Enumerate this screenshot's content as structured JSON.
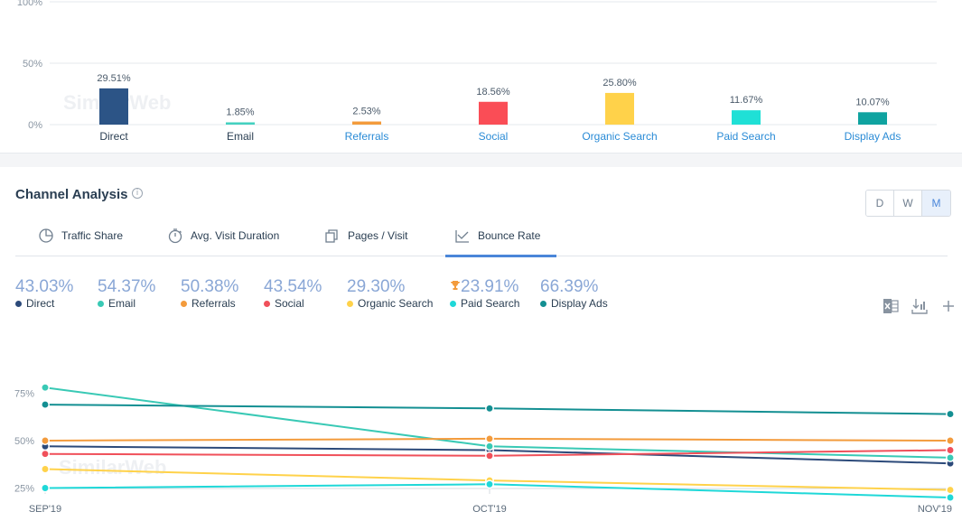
{
  "watermark": "SimilarWeb",
  "channels_overview": {
    "chart_data": {
      "type": "bar",
      "categories": [
        "Direct",
        "Email",
        "Referrals",
        "Social",
        "Organic Search",
        "Paid Search",
        "Display Ads"
      ],
      "values": [
        29.51,
        1.85,
        2.53,
        18.56,
        25.8,
        11.67,
        10.07
      ],
      "value_labels": [
        "29.51%",
        "1.85%",
        "2.53%",
        "18.56%",
        "25.80%",
        "11.67%",
        "10.07%"
      ],
      "colors": [
        "#2c5486",
        "#44d1c0",
        "#f39b3c",
        "#fa4d56",
        "#ffd24a",
        "#1fe0d6",
        "#0fa3a0"
      ],
      "label_colors": [
        "#2a3e52",
        "#2a3e52",
        "#2a8bd6",
        "#2a8bd6",
        "#2a8bd6",
        "#2a8bd6",
        "#2a8bd6"
      ],
      "y_ticks": [
        "0%",
        "50%",
        "100%"
      ],
      "ylim": [
        0,
        100
      ]
    }
  },
  "channel_analysis": {
    "title": "Channel Analysis",
    "info_icon": "i",
    "granularity": [
      "D",
      "W",
      "M"
    ],
    "granularity_active": "M",
    "tabs": [
      {
        "label": "Traffic Share",
        "icon": "pie-icon"
      },
      {
        "label": "Avg. Visit Duration",
        "icon": "stopwatch-icon"
      },
      {
        "label": "Pages / Visit",
        "icon": "pages-icon"
      },
      {
        "label": "Bounce Rate",
        "icon": "bounce-icon"
      }
    ],
    "active_tab": "Bounce Rate",
    "metrics": [
      {
        "value": "43.03%",
        "label": "Direct",
        "color": "#2c4a7a",
        "trophy": false
      },
      {
        "value": "54.37%",
        "label": "Email",
        "color": "#39c9b5",
        "trophy": false
      },
      {
        "value": "50.38%",
        "label": "Referrals",
        "color": "#f39b3c",
        "trophy": false
      },
      {
        "value": "43.54%",
        "label": "Social",
        "color": "#f0505a",
        "trophy": false
      },
      {
        "value": "29.30%",
        "label": "Organic Search",
        "color": "#ffd24a",
        "trophy": false
      },
      {
        "value": "23.91%",
        "label": "Paid Search",
        "color": "#1fd8d8",
        "trophy": true
      },
      {
        "value": "66.39%",
        "label": "Display Ads",
        "color": "#138f92",
        "trophy": false
      }
    ],
    "tools": [
      "excel-icon",
      "download-icon",
      "plus-icon"
    ],
    "chart_data": {
      "type": "line",
      "x": [
        "SEP'19",
        "OCT'19",
        "NOV'19"
      ],
      "y_ticks": [
        "25%",
        "50%",
        "75%"
      ],
      "ylim": [
        0,
        100
      ],
      "series": [
        {
          "name": "Direct",
          "values": [
            47,
            45,
            38
          ],
          "color": "#2c4a7a"
        },
        {
          "name": "Email",
          "values": [
            78,
            47,
            41
          ],
          "color": "#39c9b5"
        },
        {
          "name": "Referrals",
          "values": [
            50,
            51,
            50
          ],
          "color": "#f39b3c"
        },
        {
          "name": "Social",
          "values": [
            43,
            42,
            45
          ],
          "color": "#f0505a"
        },
        {
          "name": "Organic Search",
          "values": [
            35,
            29,
            24
          ],
          "color": "#ffd24a"
        },
        {
          "name": "Paid Search",
          "values": [
            25,
            27,
            20
          ],
          "color": "#1fd8d8"
        },
        {
          "name": "Display Ads",
          "values": [
            69,
            67,
            64
          ],
          "color": "#138f92"
        }
      ]
    }
  }
}
